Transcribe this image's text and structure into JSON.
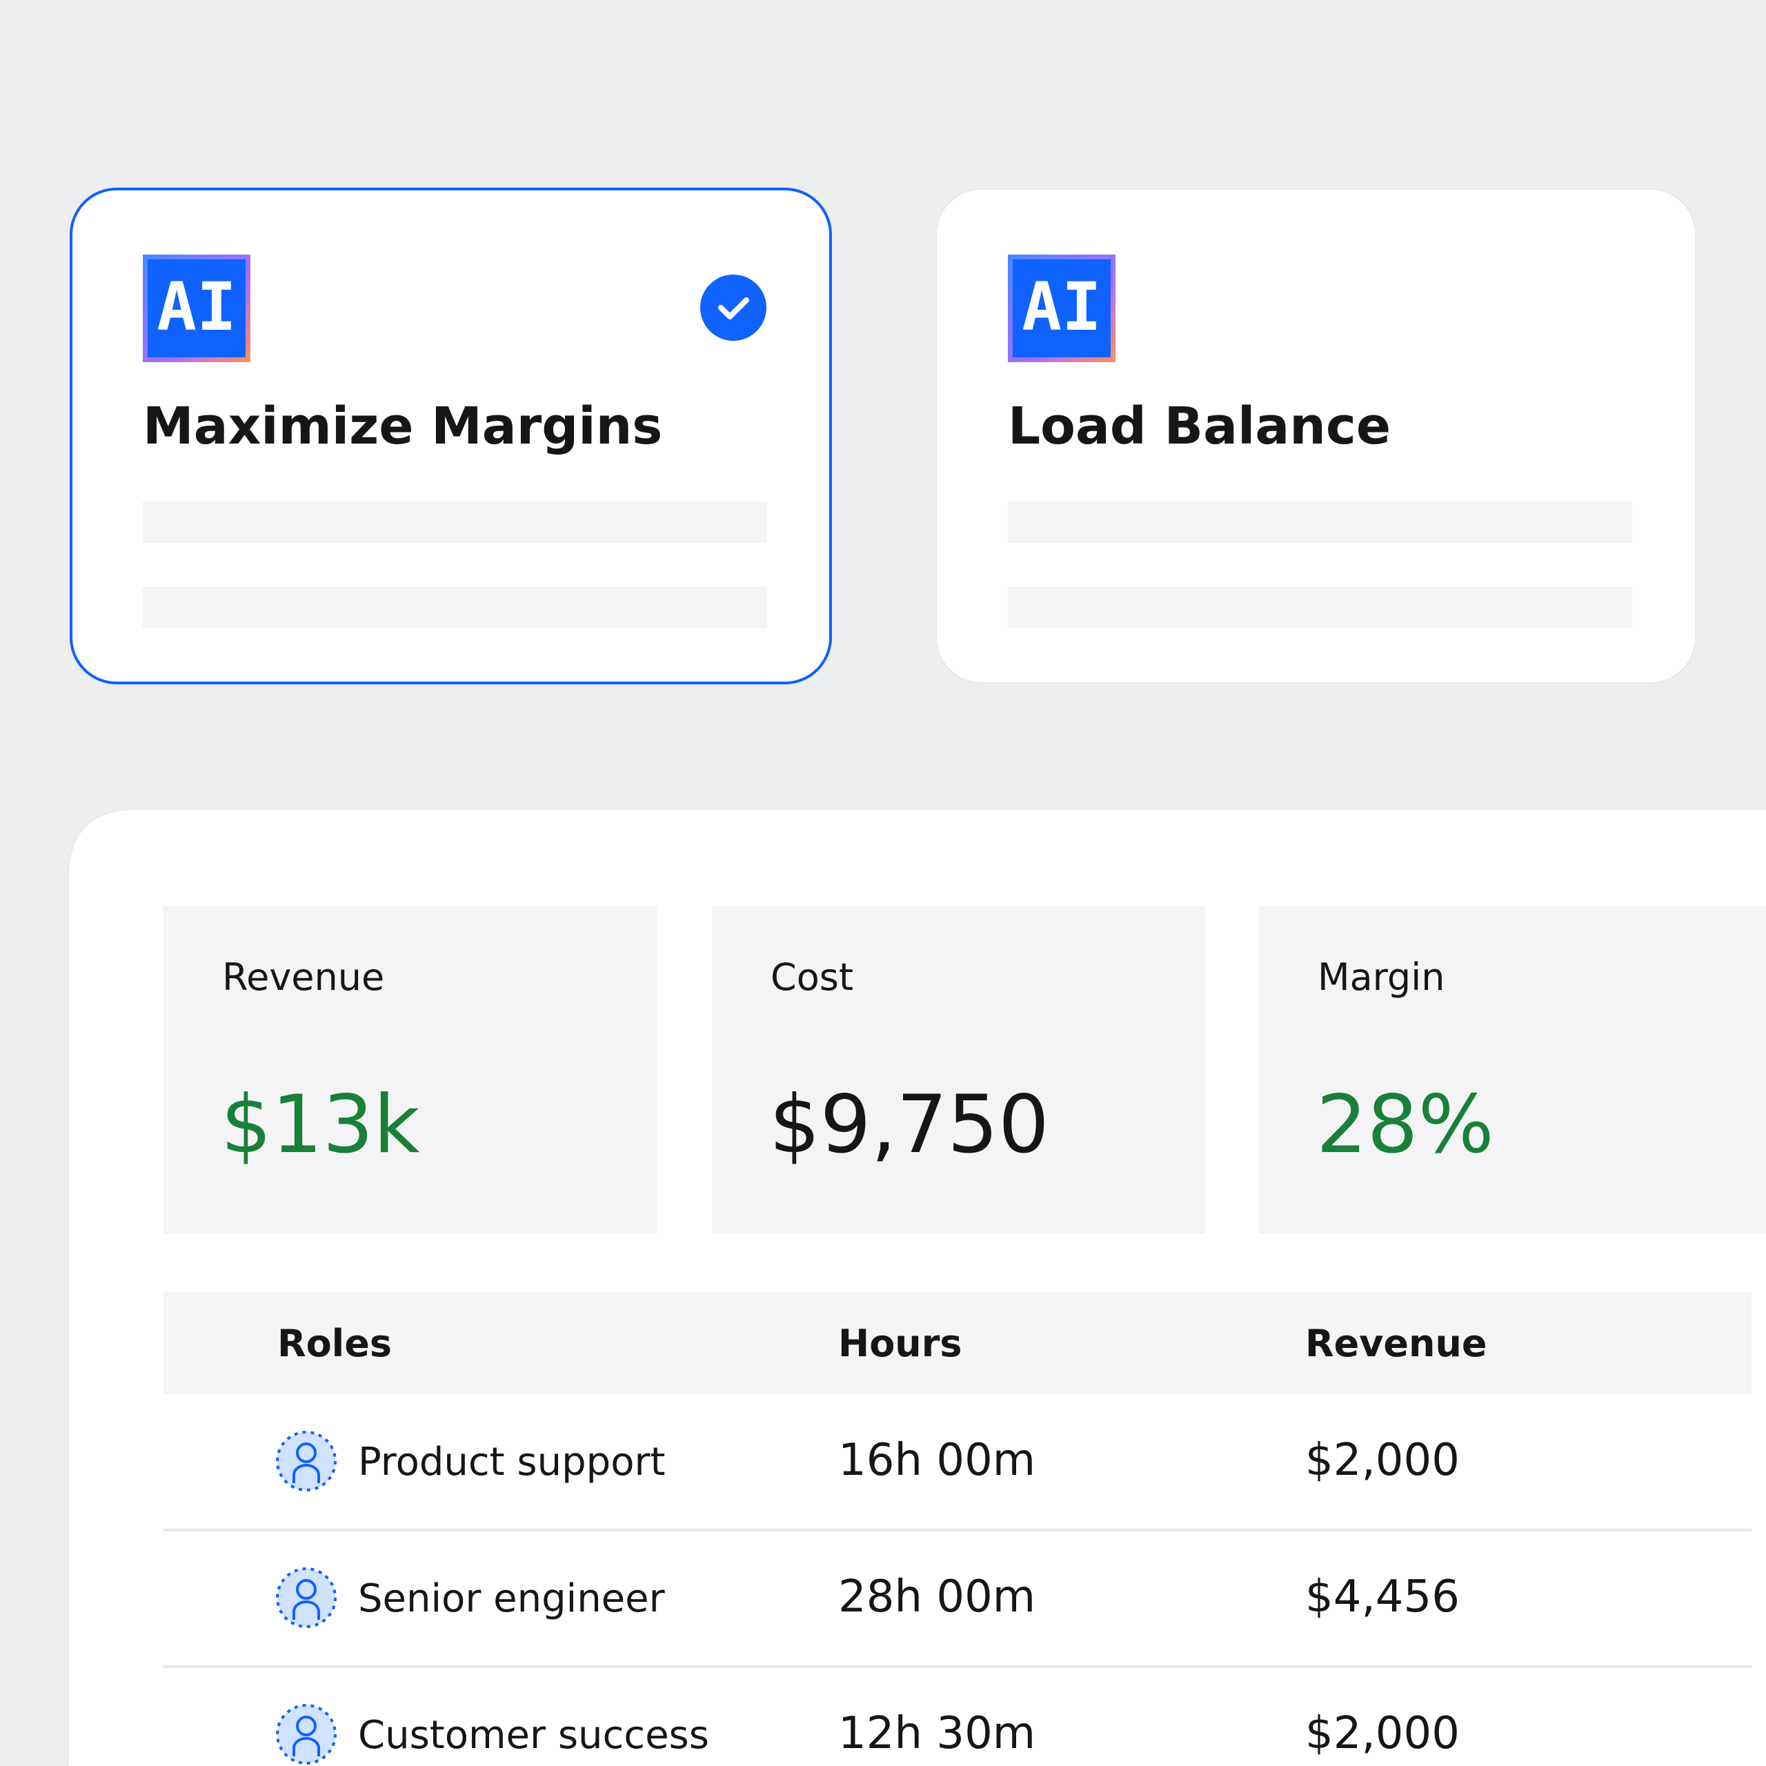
{
  "cards": [
    {
      "badge": "AI",
      "title": "Maximize Margins",
      "selected": true
    },
    {
      "badge": "AI",
      "title": "Load Balance",
      "selected": false
    }
  ],
  "metrics": [
    {
      "label": "Revenue",
      "value": "$13k",
      "color": "#198038"
    },
    {
      "label": "Cost",
      "value": "$9,750",
      "color": "#161616"
    },
    {
      "label": "Margin",
      "value": "28%",
      "color": "#198038"
    }
  ],
  "table": {
    "headers": [
      "Roles",
      "Hours",
      "Revenue"
    ],
    "rows": [
      [
        "Product support",
        "16h 00m",
        "$2,000"
      ],
      [
        "Senior engineer",
        "28h 00m",
        "$4,456"
      ],
      [
        "Customer success",
        "12h 30m",
        "$2,000"
      ]
    ]
  }
}
